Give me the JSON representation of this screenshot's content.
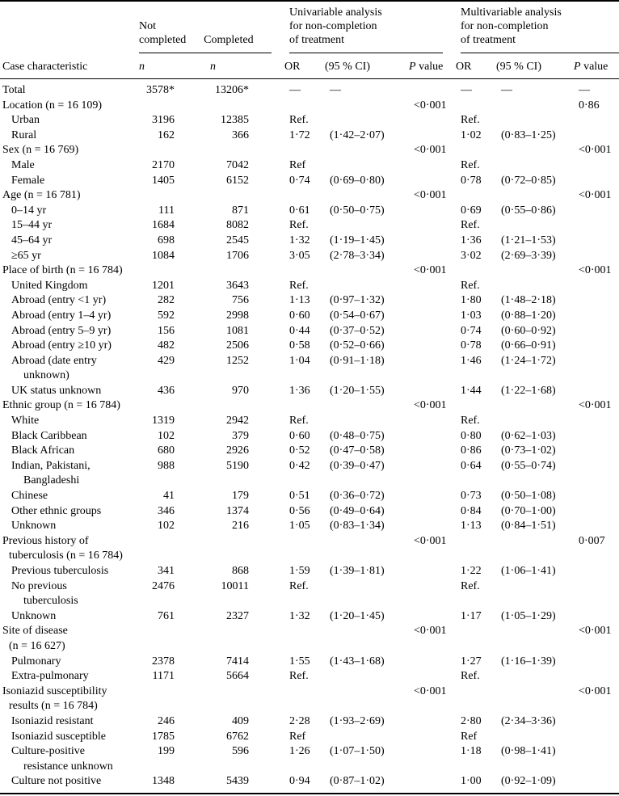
{
  "table": {
    "header": {
      "case_characteristic": "Case characteristic",
      "not_completed": "Not\ncompleted",
      "completed": "Completed",
      "univariable_group": "Univariable analysis\nfor non-completion\nof treatment",
      "multivariable_group": "Multivariable analysis\nfor non-completion\nof treatment",
      "n1": "n",
      "n2": "n",
      "or1": "OR",
      "ci1": "(95 % CI)",
      "p1": "P value",
      "or2": "OR",
      "ci2": "(95 % CI)",
      "p2": "P value"
    },
    "rows": [
      {
        "label": "Total",
        "lvl": 0,
        "nc": "3578*",
        "c": "13206*",
        "or1": "—",
        "ci1": "—",
        "p1": "",
        "or2": "—",
        "ci2": "—",
        "p2": "—"
      },
      {
        "label": "Location (n = 16 109)",
        "lvl": 0,
        "nc": "",
        "c": "",
        "or1": "",
        "ci1": "",
        "p1": "<0·001",
        "or2": "",
        "ci2": "",
        "p2": "0·86"
      },
      {
        "label": "Urban",
        "lvl": 1,
        "nc": "3196",
        "c": "12385",
        "or1": "Ref.",
        "ci1": "",
        "p1": "",
        "or2": "Ref.",
        "ci2": "",
        "p2": ""
      },
      {
        "label": "Rural",
        "lvl": 1,
        "nc": "162",
        "c": "366",
        "or1": "1·72",
        "ci1": "(1·42–2·07)",
        "p1": "",
        "or2": "1·02",
        "ci2": "(0·83–1·25)",
        "p2": ""
      },
      {
        "label": "Sex (n = 16 769)",
        "lvl": 0,
        "nc": "",
        "c": "",
        "or1": "",
        "ci1": "",
        "p1": "<0·001",
        "or2": "",
        "ci2": "",
        "p2": "<0·001"
      },
      {
        "label": "Male",
        "lvl": 1,
        "nc": "2170",
        "c": "7042",
        "or1": "Ref",
        "ci1": "",
        "p1": "",
        "or2": "Ref.",
        "ci2": "",
        "p2": ""
      },
      {
        "label": "Female",
        "lvl": 1,
        "nc": "1405",
        "c": "6152",
        "or1": "0·74",
        "ci1": "(0·69–0·80)",
        "p1": "",
        "or2": "0·78",
        "ci2": "(0·72–0·85)",
        "p2": ""
      },
      {
        "label": "Age (n = 16 781)",
        "lvl": 0,
        "nc": "",
        "c": "",
        "or1": "",
        "ci1": "",
        "p1": "<0·001",
        "or2": "",
        "ci2": "",
        "p2": "<0·001"
      },
      {
        "label": "0–14 yr",
        "lvl": 1,
        "nc": "111",
        "c": "871",
        "or1": "0·61",
        "ci1": "(0·50–0·75)",
        "p1": "",
        "or2": "0·69",
        "ci2": "(0·55–0·86)",
        "p2": ""
      },
      {
        "label": "15–44 yr",
        "lvl": 1,
        "nc": "1684",
        "c": "8082",
        "or1": "Ref.",
        "ci1": "",
        "p1": "",
        "or2": "Ref.",
        "ci2": "",
        "p2": ""
      },
      {
        "label": "45–64 yr",
        "lvl": 1,
        "nc": "698",
        "c": "2545",
        "or1": "1·32",
        "ci1": "(1·19–1·45)",
        "p1": "",
        "or2": "1·36",
        "ci2": "(1·21–1·53)",
        "p2": ""
      },
      {
        "label": "≥65 yr",
        "lvl": 1,
        "nc": "1084",
        "c": "1706",
        "or1": "3·05",
        "ci1": "(2·78–3·34)",
        "p1": "",
        "or2": "3·02",
        "ci2": "(2·69–3·39)",
        "p2": ""
      },
      {
        "label": "Place of birth (n = 16 784)",
        "lvl": 0,
        "nc": "",
        "c": "",
        "or1": "",
        "ci1": "",
        "p1": "<0·001",
        "or2": "",
        "ci2": "",
        "p2": "<0·001"
      },
      {
        "label": "United Kingdom",
        "lvl": 1,
        "nc": "1201",
        "c": "3643",
        "or1": "Ref.",
        "ci1": "",
        "p1": "",
        "or2": "Ref.",
        "ci2": "",
        "p2": ""
      },
      {
        "label": "Abroad (entry <1 yr)",
        "lvl": 1,
        "nc": "282",
        "c": "756",
        "or1": "1·13",
        "ci1": "(0·97–1·32)",
        "p1": "",
        "or2": "1·80",
        "ci2": "(1·48–2·18)",
        "p2": ""
      },
      {
        "label": "Abroad (entry 1–4 yr)",
        "lvl": 1,
        "nc": "592",
        "c": "2998",
        "or1": "0·60",
        "ci1": "(0·54–0·67)",
        "p1": "",
        "or2": "1·03",
        "ci2": "(0·88–1·20)",
        "p2": ""
      },
      {
        "label": "Abroad (entry 5–9 yr)",
        "lvl": 1,
        "nc": "156",
        "c": "1081",
        "or1": "0·44",
        "ci1": "(0·37–0·52)",
        "p1": "",
        "or2": "0·74",
        "ci2": "(0·60–0·92)",
        "p2": ""
      },
      {
        "label": "Abroad (entry ≥10 yr)",
        "lvl": 1,
        "nc": "482",
        "c": "2506",
        "or1": "0·58",
        "ci1": "(0·52–0·66)",
        "p1": "",
        "or2": "0·78",
        "ci2": "(0·66–0·91)",
        "p2": ""
      },
      {
        "label": "Abroad (date entry\nunknown)",
        "lvl": 1,
        "nc": "429",
        "c": "1252",
        "or1": "1·04",
        "ci1": "(0·91–1·18)",
        "p1": "",
        "or2": "1·46",
        "ci2": "(1·24–1·72)",
        "p2": ""
      },
      {
        "label": "UK status unknown",
        "lvl": 1,
        "nc": "436",
        "c": "970",
        "or1": "1·36",
        "ci1": "(1·20–1·55)",
        "p1": "",
        "or2": "1·44",
        "ci2": "(1·22–1·68)",
        "p2": ""
      },
      {
        "label": "Ethnic group (n = 16 784)",
        "lvl": 0,
        "nc": "",
        "c": "",
        "or1": "",
        "ci1": "",
        "p1": "<0·001",
        "or2": "",
        "ci2": "",
        "p2": "<0·001"
      },
      {
        "label": "White",
        "lvl": 1,
        "nc": "1319",
        "c": "2942",
        "or1": "Ref.",
        "ci1": "",
        "p1": "",
        "or2": "Ref.",
        "ci2": "",
        "p2": ""
      },
      {
        "label": "Black Caribbean",
        "lvl": 1,
        "nc": "102",
        "c": "379",
        "or1": "0·60",
        "ci1": "(0·48–0·75)",
        "p1": "",
        "or2": "0·80",
        "ci2": "(0·62–1·03)",
        "p2": ""
      },
      {
        "label": "Black African",
        "lvl": 1,
        "nc": "680",
        "c": "2926",
        "or1": "0·52",
        "ci1": "(0·47–0·58)",
        "p1": "",
        "or2": "0·86",
        "ci2": "(0·73–1·02)",
        "p2": ""
      },
      {
        "label": "Indian, Pakistani,\nBangladeshi",
        "lvl": 1,
        "nc": "988",
        "c": "5190",
        "or1": "0·42",
        "ci1": "(0·39–0·47)",
        "p1": "",
        "or2": "0·64",
        "ci2": "(0·55–0·74)",
        "p2": ""
      },
      {
        "label": "Chinese",
        "lvl": 1,
        "nc": "41",
        "c": "179",
        "or1": "0·51",
        "ci1": "(0·36–0·72)",
        "p1": "",
        "or2": "0·73",
        "ci2": "(0·50–1·08)",
        "p2": ""
      },
      {
        "label": "Other ethnic groups",
        "lvl": 1,
        "nc": "346",
        "c": "1374",
        "or1": "0·56",
        "ci1": "(0·49–0·64)",
        "p1": "",
        "or2": "0·84",
        "ci2": "(0·70–1·00)",
        "p2": ""
      },
      {
        "label": "Unknown",
        "lvl": 1,
        "nc": "102",
        "c": "216",
        "or1": "1·05",
        "ci1": "(0·83–1·34)",
        "p1": "",
        "or2": "1·13",
        "ci2": "(0·84–1·51)",
        "p2": ""
      },
      {
        "label": "Previous history of\ntuberculosis (n = 16 784)",
        "lvl": 0,
        "nc": "",
        "c": "",
        "or1": "",
        "ci1": "",
        "p1": "<0·001",
        "or2": "",
        "ci2": "",
        "p2": "0·007"
      },
      {
        "label": "Previous tuberculosis",
        "lvl": 1,
        "nc": "341",
        "c": "868",
        "or1": "1·59",
        "ci1": "(1·39–1·81)",
        "p1": "",
        "or2": "1·22",
        "ci2": "(1·06–1·41)",
        "p2": ""
      },
      {
        "label": "No previous\ntuberculosis",
        "lvl": 1,
        "nc": "2476",
        "c": "10011",
        "or1": "Ref.",
        "ci1": "",
        "p1": "",
        "or2": "Ref.",
        "ci2": "",
        "p2": ""
      },
      {
        "label": "Unknown",
        "lvl": 1,
        "nc": "761",
        "c": "2327",
        "or1": "1·32",
        "ci1": "(1·20–1·45)",
        "p1": "",
        "or2": "1·17",
        "ci2": "(1·05–1·29)",
        "p2": ""
      },
      {
        "label": "Site of disease\n(n = 16 627)",
        "lvl": 0,
        "nc": "",
        "c": "",
        "or1": "",
        "ci1": "",
        "p1": "<0·001",
        "or2": "",
        "ci2": "",
        "p2": "<0·001"
      },
      {
        "label": "Pulmonary",
        "lvl": 1,
        "nc": "2378",
        "c": "7414",
        "or1": "1·55",
        "ci1": "(1·43–1·68)",
        "p1": "",
        "or2": "1·27",
        "ci2": "(1·16–1·39)",
        "p2": ""
      },
      {
        "label": "Extra-pulmonary",
        "lvl": 1,
        "nc": "1171",
        "c": "5664",
        "or1": "Ref.",
        "ci1": "",
        "p1": "",
        "or2": "Ref.",
        "ci2": "",
        "p2": ""
      },
      {
        "label": "Isoniazid susceptibility\nresults (n = 16 784)",
        "lvl": 0,
        "nc": "",
        "c": "",
        "or1": "",
        "ci1": "",
        "p1": "<0·001",
        "or2": "",
        "ci2": "",
        "p2": "<0·001"
      },
      {
        "label": "Isoniazid resistant",
        "lvl": 1,
        "nc": "246",
        "c": "409",
        "or1": "2·28",
        "ci1": "(1·93–2·69)",
        "p1": "",
        "or2": "2·80",
        "ci2": "(2·34–3·36)",
        "p2": ""
      },
      {
        "label": "Isoniazid susceptible",
        "lvl": 1,
        "nc": "1785",
        "c": "6762",
        "or1": "Ref",
        "ci1": "",
        "p1": "",
        "or2": "Ref",
        "ci2": "",
        "p2": ""
      },
      {
        "label": "Culture-positive\nresistance unknown",
        "lvl": 1,
        "nc": "199",
        "c": "596",
        "or1": "1·26",
        "ci1": "(1·07–1·50)",
        "p1": "",
        "or2": "1·18",
        "ci2": "(0·98–1·41)",
        "p2": ""
      },
      {
        "label": "Culture not positive",
        "lvl": 1,
        "nc": "1348",
        "c": "5439",
        "or1": "0·94",
        "ci1": "(0·87–1·02)",
        "p1": "",
        "or2": "1·00",
        "ci2": "(0·92–1·09)",
        "p2": ""
      }
    ]
  }
}
